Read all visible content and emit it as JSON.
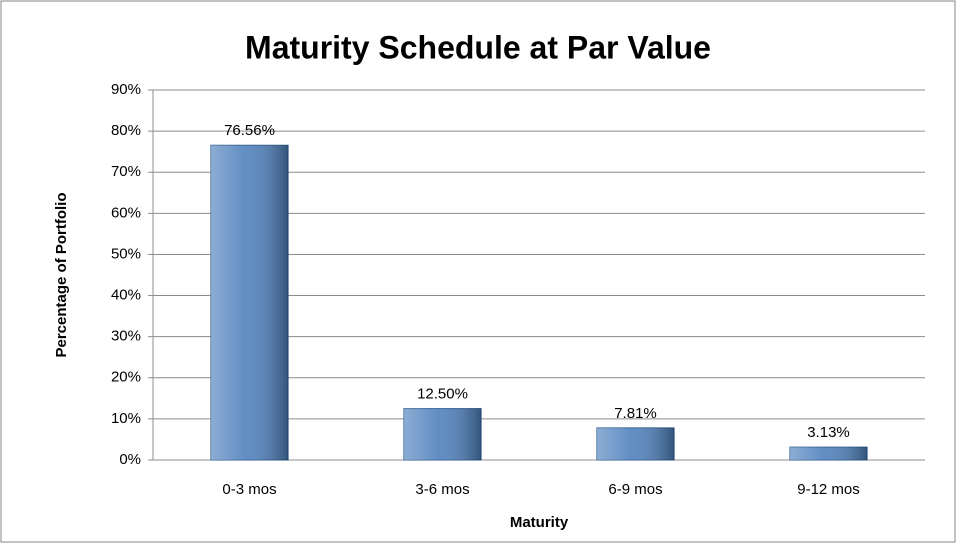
{
  "chart_data": {
    "type": "bar",
    "title": "Maturity Schedule at Par Value",
    "x_label": "Maturity",
    "y_label": "Percentage of Portfolio",
    "categories": [
      "0-3 mos",
      "3-6 mos",
      "6-9 mos",
      "9-12 mos"
    ],
    "values": [
      76.56,
      12.5,
      7.81,
      3.13
    ],
    "value_labels": [
      "76.56%",
      "12.50%",
      "7.81%",
      "3.13%"
    ],
    "color": "#4f81bd",
    "ylim": [
      0,
      90
    ],
    "yticks": [
      {
        "value": 0,
        "label": "0%"
      },
      {
        "value": 10,
        "label": "10%"
      },
      {
        "value": 20,
        "label": "20%"
      },
      {
        "value": 30,
        "label": "30%"
      },
      {
        "value": 40,
        "label": "40%"
      },
      {
        "value": 50,
        "label": "50%"
      },
      {
        "value": 60,
        "label": "60%"
      },
      {
        "value": 70,
        "label": "70%"
      },
      {
        "value": 80,
        "label": "80%"
      },
      {
        "value": 90,
        "label": "90%"
      }
    ],
    "grid": true
  }
}
